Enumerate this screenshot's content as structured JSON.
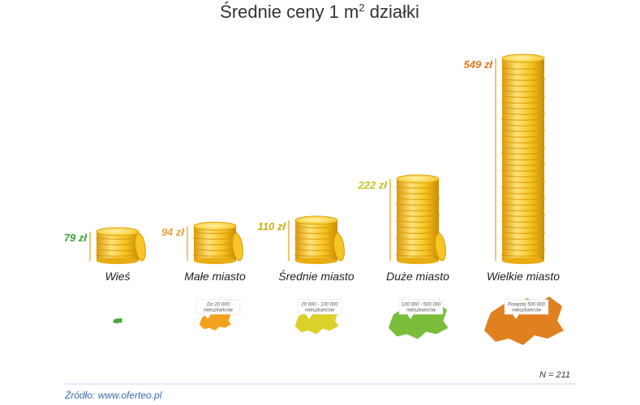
{
  "chart_data": {
    "type": "bar",
    "title": "Średnie ceny 1 m",
    "title_sup": "2",
    "title_end": " działki",
    "categories": [
      "Wieś",
      "Małe miasto",
      "Średnie miasto",
      "Duże miasto",
      "Wielkie miasto"
    ],
    "values": [
      79,
      94,
      110,
      222,
      549
    ],
    "value_labels": [
      "79 zł",
      "94 zł",
      "110 zł",
      "222 zł",
      "549 zł"
    ],
    "population_labels": [
      [
        "",
        ""
      ],
      [
        "Do 20 000",
        "mieszkańców"
      ],
      [
        "20 000 - 100 000",
        "mieszkańców"
      ],
      [
        "100 000 - 500 000",
        "mieszkańców"
      ],
      [
        "Powyżej 500 000",
        "mieszkańców"
      ]
    ],
    "unit": "zł",
    "xlabel": "",
    "ylabel": "",
    "ylim": [
      0,
      549
    ],
    "sample": "N = 211",
    "source": "Źródło: www.oferteo.pl",
    "colors": {
      "label_colors": [
        "#3aa43a",
        "#e8a33c",
        "#c9b01a",
        "#c9c02a",
        "#e07a1f"
      ],
      "map_colors": [
        "#4aaa3a",
        "#f2a21c",
        "#dcd02a",
        "#79bd3a",
        "#e0801f"
      ],
      "coin": "#f4c21d",
      "coin_light": "#ffe37a",
      "coin_dark": "#d99a0a",
      "rule": "#e4a020",
      "footer_rule": "#c8d4e4"
    }
  }
}
